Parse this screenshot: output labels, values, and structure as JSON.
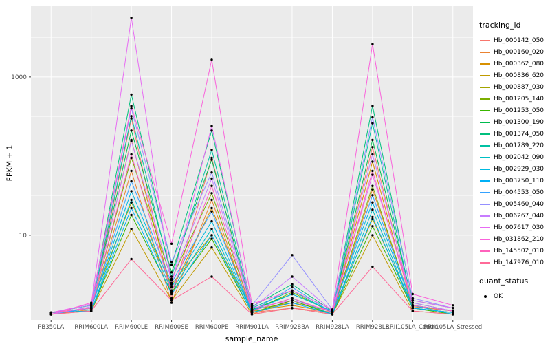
{
  "chart_data": {
    "type": "line",
    "title": "",
    "xlabel": "sample_name",
    "ylabel": "FPKM + 1",
    "y_scale": "log10",
    "grid": true,
    "panel_bg": "#EBEBEB",
    "grid_color": "#FFFFFF",
    "point_color": "#000000",
    "axis_text_color": "#4D4D4D",
    "ylim": [
      0.85,
      8000
    ],
    "y_ticks": [
      10,
      1000
    ],
    "y_minor_ticks": [
      3.1623,
      31.623,
      316.23,
      3162.3
    ],
    "legend_position": "right",
    "categories": [
      "PB350LA",
      "RRIM600LA",
      "RRIM600LE",
      "RRIM600SE",
      "RRIM600PE",
      "RRIM901LA",
      "RRIM928BA",
      "RRIM928LA",
      "RRIM928LE",
      "RRII105LA_Control",
      "RRII105LA_Stressed"
    ],
    "series": [
      {
        "name": "Hb_000142_050",
        "color": "#F8766D",
        "values": [
          1.05,
          1.1,
          300,
          1.6,
          95,
          1.05,
          1.2,
          1.05,
          130,
          1.2,
          1.05
        ]
      },
      {
        "name": "Hb_000160_020",
        "color": "#EA8331",
        "values": [
          1.0,
          1.15,
          65,
          1.4,
          28,
          1.0,
          1.5,
          1.0,
          38,
          1.25,
          1.1
        ]
      },
      {
        "name": "Hb_000362_080",
        "color": "#D89000",
        "values": [
          1.05,
          1.2,
          160,
          2.0,
          22,
          1.1,
          1.3,
          1.05,
          85,
          1.2,
          1.05
        ]
      },
      {
        "name": "Hb_000836_620",
        "color": "#C09B00",
        "values": [
          1.0,
          1.1,
          12,
          1.5,
          7,
          1.0,
          1.2,
          1.0,
          10,
          1.1,
          1.0
        ]
      },
      {
        "name": "Hb_000887_030",
        "color": "#A3A500",
        "values": [
          1.05,
          1.3,
          26,
          2.4,
          10,
          1.15,
          1.4,
          1.1,
          16,
          1.3,
          1.1
        ]
      },
      {
        "name": "Hb_001205_140",
        "color": "#7CAE00",
        "values": [
          1.0,
          1.2,
          95,
          2.8,
          34,
          1.1,
          1.9,
          1.05,
          42,
          1.2,
          1.05
        ]
      },
      {
        "name": "Hb_001253_050",
        "color": "#39B600",
        "values": [
          1.05,
          1.1,
          18,
          1.9,
          9,
          1.05,
          1.5,
          1.0,
          13,
          1.2,
          1.0
        ]
      },
      {
        "name": "Hb_001300_190",
        "color": "#00BB4E",
        "values": [
          1.0,
          1.2,
          210,
          3.4,
          90,
          1.15,
          1.8,
          1.1,
          160,
          1.4,
          1.1
        ]
      },
      {
        "name": "Hb_001374_050",
        "color": "#00BF7D",
        "values": [
          1.05,
          1.3,
          600,
          4.2,
          210,
          1.25,
          2.4,
          1.1,
          430,
          1.5,
          1.2
        ]
      },
      {
        "name": "Hb_001789_220",
        "color": "#00C1A3",
        "values": [
          1.0,
          1.2,
          320,
          3.0,
          120,
          1.2,
          2.0,
          1.05,
          260,
          1.3,
          1.1
        ]
      },
      {
        "name": "Hb_002042_090",
        "color": "#00BFC4",
        "values": [
          1.05,
          1.1,
          28,
          2.0,
          12,
          1.1,
          1.6,
          1.0,
          21,
          1.2,
          1.05
        ]
      },
      {
        "name": "Hb_002929_030",
        "color": "#00BAE0",
        "values": [
          1.0,
          1.2,
          36,
          2.2,
          15,
          1.1,
          1.8,
          1.1,
          26,
          1.3,
          1.0
        ]
      },
      {
        "name": "Hb_003750_110",
        "color": "#00B0F6",
        "values": [
          1.05,
          1.1,
          22,
          1.8,
          10,
          1.05,
          1.4,
          1.0,
          17,
          1.2,
          1.05
        ]
      },
      {
        "name": "Hb_004553_050",
        "color": "#35A2FF",
        "values": [
          1.0,
          1.2,
          48,
          2.5,
          20,
          1.1,
          2.2,
          1.05,
          32,
          1.3,
          1.1
        ]
      },
      {
        "name": "Hb_005460_040",
        "color": "#9590FF",
        "values": [
          1.05,
          1.3,
          400,
          4.6,
          62,
          1.3,
          5.6,
          1.15,
          310,
          1.6,
          1.2
        ]
      },
      {
        "name": "Hb_006267_040",
        "color": "#C77CFF",
        "values": [
          1.0,
          1.25,
          155,
          2.7,
          52,
          1.2,
          3.0,
          1.1,
          105,
          1.4,
          1.1
        ]
      },
      {
        "name": "Hb_007617_030",
        "color": "#E76BF3",
        "values": [
          1.05,
          1.35,
          5600,
          2.4,
          240,
          1.2,
          1.5,
          1.1,
          58,
          1.5,
          1.2
        ]
      },
      {
        "name": "Hb_031862_210",
        "color": "#FA62DB",
        "values": [
          1.0,
          1.4,
          430,
          7.8,
          1650,
          1.35,
          2.0,
          1.15,
          2600,
          1.8,
          1.3
        ]
      },
      {
        "name": "Hb_145502_010",
        "color": "#FF62BC",
        "values": [
          1.05,
          1.2,
          105,
          1.9,
          42,
          1.1,
          1.6,
          1.05,
          65,
          1.3,
          1.1
        ]
      },
      {
        "name": "Hb_147976_010",
        "color": "#FF6A98",
        "values": [
          1.0,
          1.1,
          5,
          1.5,
          3,
          1.0,
          1.2,
          1.0,
          4,
          1.1,
          1.0
        ]
      }
    ],
    "legend": {
      "color_title": "tracking_id",
      "shape_title": "quant_status",
      "shape_items": [
        {
          "label": "OK"
        }
      ]
    }
  }
}
